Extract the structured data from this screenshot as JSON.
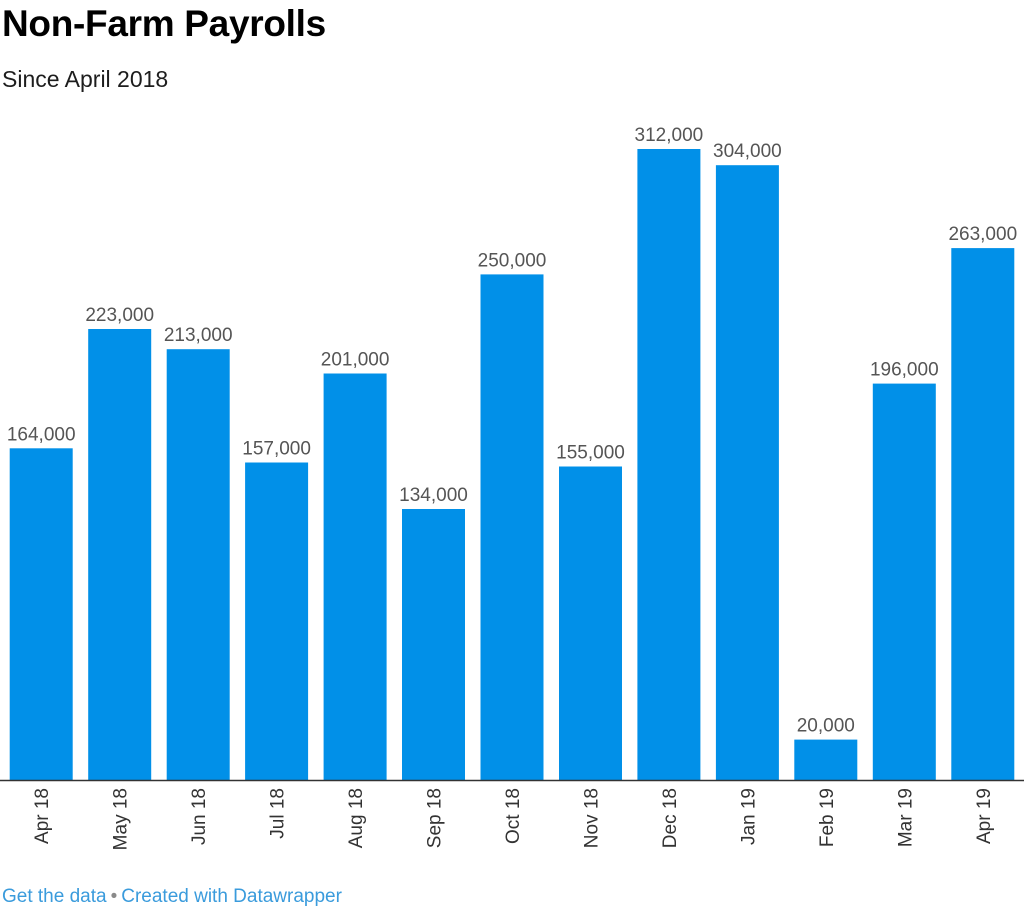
{
  "header": {
    "title": "Non-Farm Payrolls",
    "subtitle": "Since April 2018"
  },
  "footer": {
    "get_data_label": "Get the data",
    "separator": "•",
    "created_with_label": "Created with Datawrapper"
  },
  "colors": {
    "bar": "#0190e8",
    "baseline": "#333333",
    "value_label": "#555555",
    "link": "#3a9bdc"
  },
  "chart_data": {
    "type": "bar",
    "title": "Non-Farm Payrolls",
    "subtitle": "Since April 2018",
    "xlabel": "",
    "ylabel": "",
    "categories": [
      "Apr 18",
      "May 18",
      "Jun 18",
      "Jul 18",
      "Aug 18",
      "Sep 18",
      "Oct 18",
      "Nov 18",
      "Dec 18",
      "Jan 19",
      "Feb 19",
      "Mar 19",
      "Apr 19"
    ],
    "values": [
      164000,
      223000,
      213000,
      157000,
      201000,
      134000,
      250000,
      155000,
      312000,
      304000,
      20000,
      196000,
      263000
    ],
    "value_labels": [
      "164,000",
      "223,000",
      "213,000",
      "157,000",
      "201,000",
      "134,000",
      "250,000",
      "155,000",
      "312,000",
      "304,000",
      "20,000",
      "196,000",
      "263,000"
    ],
    "ylim": [
      0,
      312000
    ],
    "grid": false,
    "legend": "none",
    "x_tick_rotation": "vertical"
  }
}
